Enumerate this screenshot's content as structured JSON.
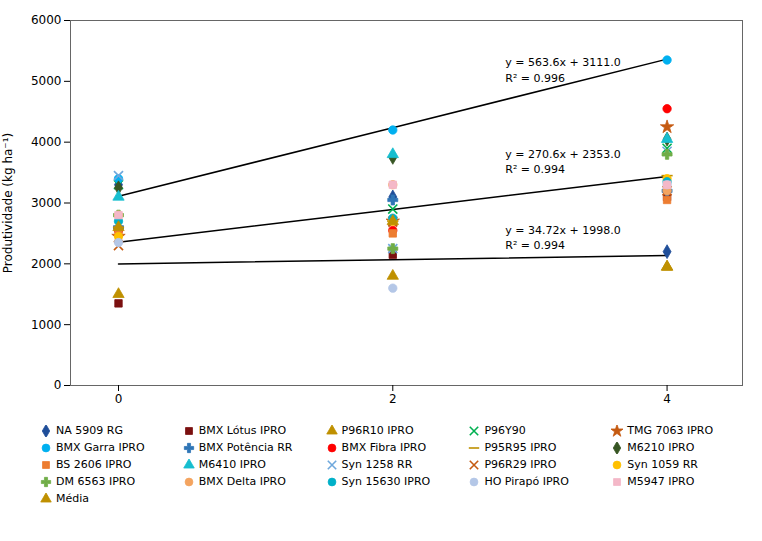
{
  "chart_data": {
    "type": "scatter",
    "ylabel": "Produtividade (kg ha⁻¹)",
    "x": [
      0,
      2,
      4
    ],
    "xlim": [
      -0.35,
      4.55
    ],
    "xticks": [
      0,
      2,
      4
    ],
    "ylim": [
      0,
      6000
    ],
    "yticks": [
      0,
      1000,
      2000,
      3000,
      4000,
      5000,
      6000
    ],
    "grid": false,
    "legend": "bottom",
    "series": [
      {
        "name": "NA 5909  RG",
        "color": "#1f4e99",
        "marker": "diamond",
        "values": [
          3300,
          3100,
          2200
        ]
      },
      {
        "name": "BMX Lótus IPRO",
        "color": "#7b1010",
        "marker": "square",
        "values": [
          1350,
          2150,
          3100
        ]
      },
      {
        "name": "P96R10 IPRO",
        "color": "#bf9000",
        "marker": "triangle",
        "values": [
          1500,
          1800,
          1950
        ]
      },
      {
        "name": "P96Y90",
        "color": "#00b050",
        "marker": "x",
        "values": [
          3300,
          2900,
          3900
        ]
      },
      {
        "name": "TMG 7063 IPRO",
        "color": "#c55a11",
        "marker": "star",
        "values": [
          2450,
          2700,
          4250
        ]
      },
      {
        "name": "BMX Garra IPRO",
        "color": "#00b0f0",
        "marker": "circle",
        "values": [
          3400,
          4200,
          5350
        ]
      },
      {
        "name": "BMX Potência RR",
        "color": "#2e75b6",
        "marker": "plus",
        "values": [
          2600,
          3050,
          3200
        ]
      },
      {
        "name": "BMX Fibra IPRO",
        "color": "#ff0000",
        "marker": "circle",
        "values": [
          2550,
          2550,
          4550
        ]
      },
      {
        "name": "P95R95 IPRO",
        "color": "#bf9000",
        "marker": "hline",
        "values": [
          2600,
          2700,
          3450
        ]
      },
      {
        "name": "M6210 IPRO",
        "color": "#375623",
        "marker": "diamond",
        "values": [
          3250,
          3750,
          4050
        ]
      },
      {
        "name": "BS 2606 IPRO",
        "color": "#ed7d31",
        "marker": "square",
        "values": [
          2550,
          2500,
          3050
        ]
      },
      {
        "name": "M6410 IPRO",
        "color": "#17becf",
        "marker": "triangle",
        "values": [
          3100,
          3800,
          4050
        ]
      },
      {
        "name": "Syn 1258 RR",
        "color": "#6fa8dc",
        "marker": "x",
        "values": [
          3450,
          2250,
          3850
        ]
      },
      {
        "name": "P96R29 IPRO",
        "color": "#c55a11",
        "marker": "x",
        "values": [
          2300,
          2700,
          3200
        ]
      },
      {
        "name": "Syn 1059 RR",
        "color": "#ffc000",
        "marker": "circle",
        "values": [
          2450,
          2700,
          3400
        ]
      },
      {
        "name": "DM 6563 IPRO",
        "color": "#70ad47",
        "marker": "plus",
        "values": [
          2800,
          2250,
          3800
        ]
      },
      {
        "name": "BMX Delta IPRO",
        "color": "#f4a460",
        "marker": "circle",
        "values": [
          2800,
          3300,
          3200
        ]
      },
      {
        "name": "Syn 15630 IPRO",
        "color": "#00b0c8",
        "marker": "circle",
        "values": [
          2700,
          2750,
          3350
        ]
      },
      {
        "name": "HO Pirapó IPRO",
        "color": "#b4c7e7",
        "marker": "circle",
        "values": [
          2350,
          1600,
          3300
        ]
      },
      {
        "name": "M5947 IPRO",
        "color": "#f4b8c8",
        "marker": "square",
        "values": [
          2800,
          3300,
          3300
        ]
      },
      {
        "name": "Média",
        "color": "#bf9000",
        "marker": "triangle",
        "values": [
          2600,
          2700,
          1950
        ]
      }
    ],
    "trend_lines": [
      {
        "type": "line",
        "color": "black",
        "line_style": "solid",
        "values": [
          3111.0,
          4238.2,
          5365.4
        ]
      },
      {
        "type": "line",
        "color": "black",
        "line_style": "solid",
        "values": [
          2353.0,
          2894.2,
          3435.4
        ]
      },
      {
        "type": "line",
        "color": "black",
        "line_style": "solid",
        "values": [
          1998.0,
          2067.44,
          2136.88
        ]
      }
    ],
    "annotations": [
      {
        "text": "y = 563.6x + 3111.0\nR² = 0.996",
        "x": 2.82,
        "y": 5200
      },
      {
        "text": "y = 270.6x + 2353.0\nR² = 0.994",
        "x": 2.82,
        "y": 3700
      },
      {
        "text": "y = 34.72x + 1998.0\nR² = 0.994",
        "x": 2.82,
        "y": 2450
      }
    ]
  }
}
